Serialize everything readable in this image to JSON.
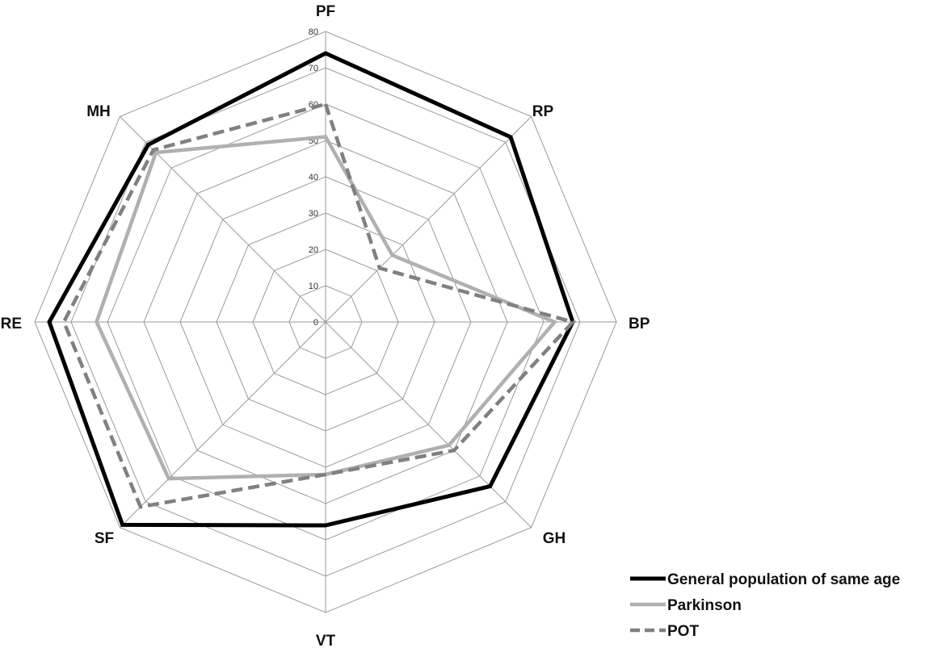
{
  "chart_data": {
    "type": "radar",
    "axes": [
      "PF",
      "RP",
      "BP",
      "GH",
      "VT",
      "SF",
      "RE",
      "MH"
    ],
    "range": [
      0,
      80
    ],
    "ticks": [
      0,
      10,
      20,
      30,
      40,
      50,
      60,
      70,
      80
    ],
    "grid": true,
    "legend_position": "bottom-right",
    "series": [
      {
        "name": "General population of same age",
        "values": [
          74,
          72,
          68,
          64,
          56,
          79,
          76,
          69
        ],
        "color": "#000000",
        "dash": "solid"
      },
      {
        "name": "Parkinson",
        "values": [
          51,
          26,
          63,
          48,
          42,
          61,
          63,
          66
        ],
        "color": "#b0b0b0",
        "dash": "solid"
      },
      {
        "name": "POT",
        "values": [
          60,
          21,
          68,
          50,
          42,
          72,
          72,
          67
        ],
        "color": "#808080",
        "dash": "dashed"
      }
    ]
  }
}
